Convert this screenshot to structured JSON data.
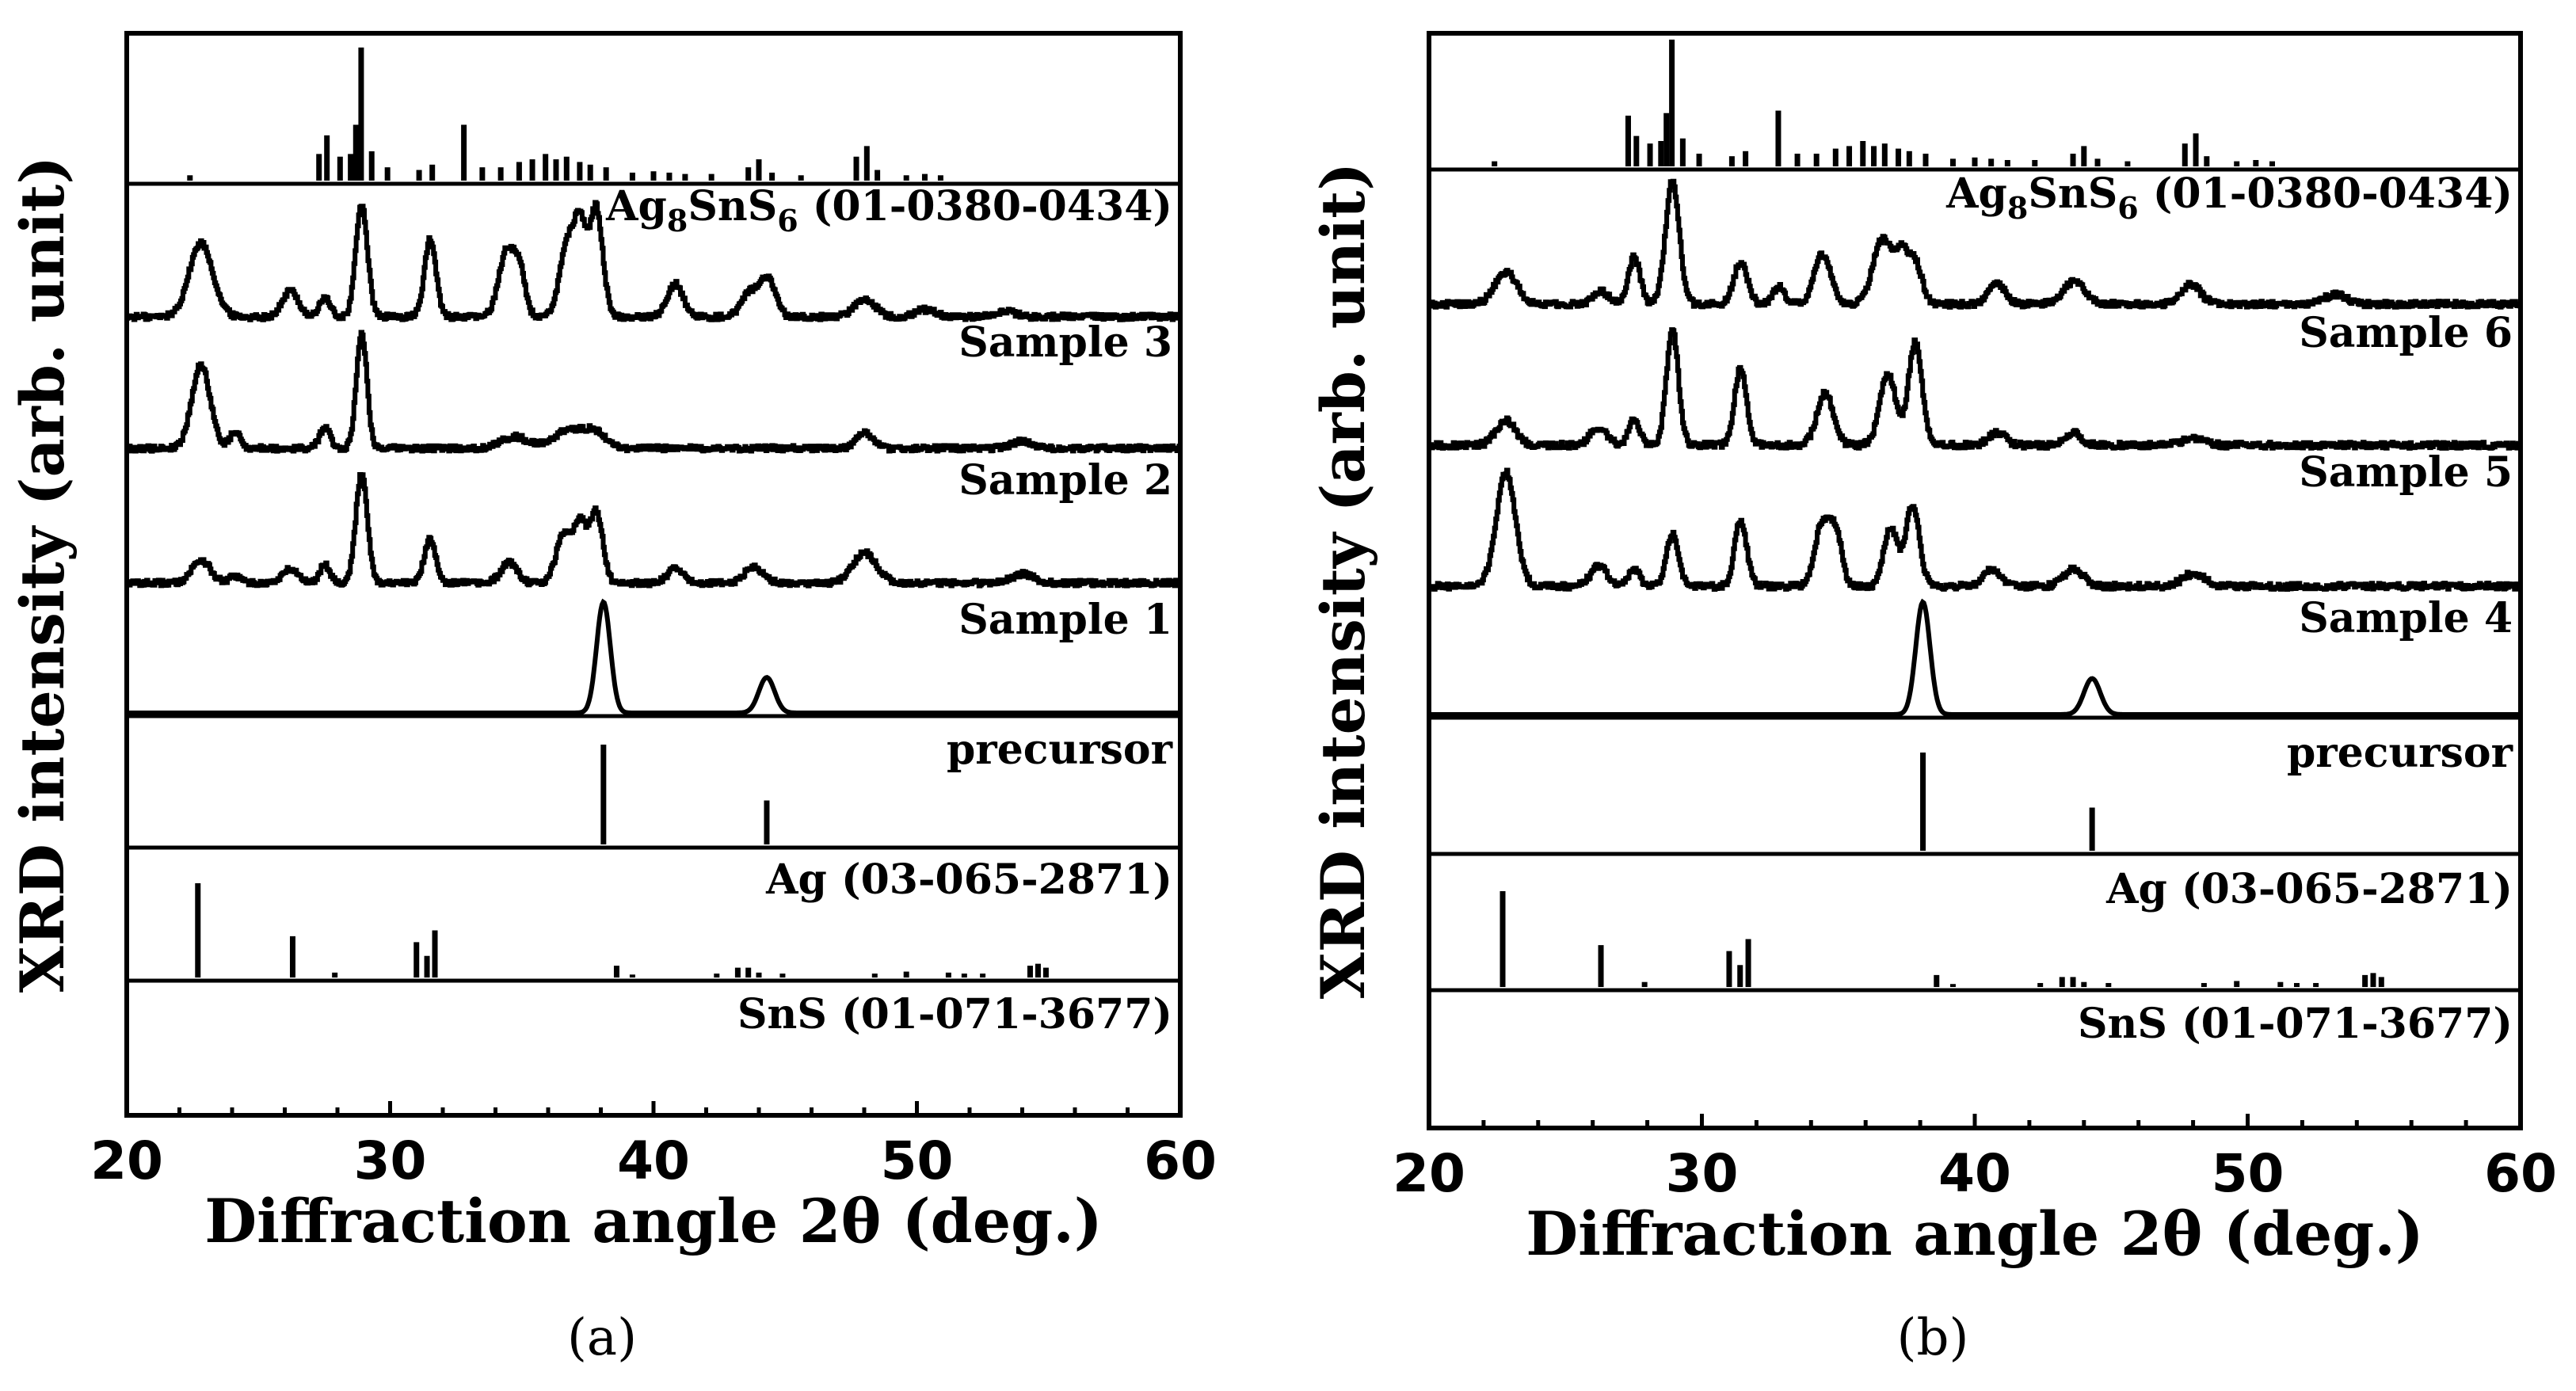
{
  "chart_data": [
    {
      "type": "line",
      "panel": "(a)",
      "xlabel": "Diffraction angle 2θ (deg.)",
      "ylabel": "XRD intensity (arb. unit)",
      "xlim": [
        20,
        60
      ],
      "xticks": [
        20,
        30,
        40,
        50,
        60
      ],
      "series": [
        {
          "name": "Ag8SnS6 (01-0380-0434)",
          "label_parts": [
            "Ag",
            "8",
            "SnS",
            "6",
            " (01-0380-0434)"
          ],
          "kind": "reference",
          "sticks": [
            [
              22.4,
              0.04
            ],
            [
              27.3,
              0.2
            ],
            [
              27.6,
              0.34
            ],
            [
              28.1,
              0.18
            ],
            [
              28.5,
              0.2
            ],
            [
              28.7,
              0.42
            ],
            [
              28.9,
              1.0
            ],
            [
              29.3,
              0.22
            ],
            [
              29.9,
              0.1
            ],
            [
              31.1,
              0.08
            ],
            [
              31.6,
              0.12
            ],
            [
              32.8,
              0.42
            ],
            [
              33.5,
              0.1
            ],
            [
              34.2,
              0.1
            ],
            [
              34.9,
              0.14
            ],
            [
              35.4,
              0.16
            ],
            [
              35.9,
              0.2
            ],
            [
              36.3,
              0.16
            ],
            [
              36.7,
              0.18
            ],
            [
              37.2,
              0.14
            ],
            [
              37.6,
              0.12
            ],
            [
              38.2,
              0.1
            ],
            [
              39.2,
              0.06
            ],
            [
              40.0,
              0.07
            ],
            [
              40.6,
              0.06
            ],
            [
              41.2,
              0.05
            ],
            [
              42.2,
              0.05
            ],
            [
              43.6,
              0.1
            ],
            [
              44.0,
              0.16
            ],
            [
              44.5,
              0.06
            ],
            [
              45.6,
              0.04
            ],
            [
              47.7,
              0.18
            ],
            [
              48.1,
              0.26
            ],
            [
              48.5,
              0.08
            ],
            [
              49.6,
              0.04
            ],
            [
              50.3,
              0.05
            ],
            [
              50.9,
              0.04
            ]
          ]
        },
        {
          "name": "Sample 3",
          "kind": "measured",
          "peaks": [
            [
              22.8,
              0.62,
              0.45
            ],
            [
              26.2,
              0.22,
              0.3
            ],
            [
              27.5,
              0.16,
              0.2
            ],
            [
              28.9,
              0.95,
              0.22
            ],
            [
              31.5,
              0.65,
              0.22
            ],
            [
              34.4,
              0.55,
              0.3
            ],
            [
              34.9,
              0.35,
              0.22
            ],
            [
              36.7,
              0.62,
              0.28
            ],
            [
              37.2,
              0.72,
              0.22
            ],
            [
              37.8,
              0.92,
              0.25
            ],
            [
              40.8,
              0.28,
              0.3
            ],
            [
              43.6,
              0.2,
              0.3
            ],
            [
              44.3,
              0.32,
              0.3
            ],
            [
              48.0,
              0.15,
              0.4
            ],
            [
              50.3,
              0.06,
              0.4
            ],
            [
              53.3,
              0.05,
              0.4
            ]
          ]
        },
        {
          "name": "Sample 2",
          "kind": "measured",
          "peaks": [
            [
              22.8,
              0.72,
              0.35
            ],
            [
              24.1,
              0.14,
              0.2
            ],
            [
              27.5,
              0.18,
              0.2
            ],
            [
              28.9,
              1.0,
              0.2
            ],
            [
              34.7,
              0.1,
              0.5
            ],
            [
              36.8,
              0.16,
              0.6
            ],
            [
              37.8,
              0.12,
              0.4
            ],
            [
              48.0,
              0.14,
              0.3
            ],
            [
              54.0,
              0.06,
              0.4
            ]
          ]
        },
        {
          "name": "Sample 1",
          "kind": "measured",
          "peaks": [
            [
              22.8,
              0.2,
              0.35
            ],
            [
              24.1,
              0.06,
              0.2
            ],
            [
              26.2,
              0.12,
              0.3
            ],
            [
              27.5,
              0.16,
              0.2
            ],
            [
              28.9,
              0.95,
              0.22
            ],
            [
              31.5,
              0.38,
              0.22
            ],
            [
              34.5,
              0.18,
              0.3
            ],
            [
              36.6,
              0.44,
              0.3
            ],
            [
              37.2,
              0.48,
              0.22
            ],
            [
              37.8,
              0.62,
              0.25
            ],
            [
              40.8,
              0.12,
              0.3
            ],
            [
              43.8,
              0.14,
              0.35
            ],
            [
              48.0,
              0.26,
              0.45
            ],
            [
              54.0,
              0.08,
              0.4
            ]
          ]
        },
        {
          "name": "precursor",
          "kind": "measured",
          "peaks": [
            [
              38.1,
              1.0,
              0.26
            ],
            [
              44.3,
              0.32,
              0.3
            ]
          ]
        },
        {
          "name": "Ag (03-065-2871)",
          "kind": "reference",
          "sticks": [
            [
              38.1,
              1.0
            ],
            [
              44.3,
              0.44
            ]
          ]
        },
        {
          "name": "SnS (01-071-3677)",
          "kind": "reference",
          "sticks": [
            [
              22.7,
              0.96
            ],
            [
              26.3,
              0.42
            ],
            [
              27.9,
              0.05
            ],
            [
              31.0,
              0.36
            ],
            [
              31.4,
              0.22
            ],
            [
              31.7,
              0.48
            ],
            [
              38.6,
              0.12
            ],
            [
              39.2,
              0.03
            ],
            [
              42.4,
              0.04
            ],
            [
              43.2,
              0.1
            ],
            [
              43.6,
              0.1
            ],
            [
              44.0,
              0.05
            ],
            [
              44.9,
              0.04
            ],
            [
              48.4,
              0.04
            ],
            [
              49.6,
              0.06
            ],
            [
              51.2,
              0.05
            ],
            [
              51.8,
              0.04
            ],
            [
              52.5,
              0.04
            ],
            [
              54.3,
              0.12
            ],
            [
              54.6,
              0.14
            ],
            [
              54.9,
              0.1
            ]
          ]
        }
      ]
    },
    {
      "type": "line",
      "panel": "(b)",
      "xlabel": "Diffraction angle 2θ (deg.)",
      "ylabel": "XRD intensity (arb. unit)",
      "xlim": [
        20,
        60
      ],
      "xticks": [
        20,
        30,
        40,
        50,
        60
      ],
      "series": [
        {
          "name": "Ag8SnS6 (01-0380-0434)",
          "label_parts": [
            "Ag",
            "8",
            "SnS",
            "6",
            " (01-0380-0434)"
          ],
          "kind": "reference",
          "sticks": [
            [
              22.4,
              0.04
            ],
            [
              27.3,
              0.4
            ],
            [
              27.6,
              0.24
            ],
            [
              28.1,
              0.18
            ],
            [
              28.5,
              0.2
            ],
            [
              28.7,
              0.42
            ],
            [
              28.9,
              1.0
            ],
            [
              29.3,
              0.22
            ],
            [
              29.9,
              0.1
            ],
            [
              31.1,
              0.08
            ],
            [
              31.6,
              0.12
            ],
            [
              32.8,
              0.44
            ],
            [
              33.5,
              0.1
            ],
            [
              34.2,
              0.1
            ],
            [
              34.9,
              0.14
            ],
            [
              35.4,
              0.16
            ],
            [
              35.9,
              0.2
            ],
            [
              36.3,
              0.16
            ],
            [
              36.7,
              0.18
            ],
            [
              37.2,
              0.14
            ],
            [
              37.6,
              0.12
            ],
            [
              38.2,
              0.1
            ],
            [
              39.2,
              0.06
            ],
            [
              40.0,
              0.07
            ],
            [
              40.6,
              0.06
            ],
            [
              41.2,
              0.05
            ],
            [
              42.2,
              0.05
            ],
            [
              43.6,
              0.1
            ],
            [
              44.0,
              0.16
            ],
            [
              44.5,
              0.06
            ],
            [
              45.6,
              0.04
            ],
            [
              47.7,
              0.18
            ],
            [
              48.1,
              0.26
            ],
            [
              48.5,
              0.08
            ],
            [
              49.6,
              0.04
            ],
            [
              50.3,
              0.05
            ],
            [
              50.9,
              0.04
            ]
          ]
        },
        {
          "name": "Sample 6",
          "kind": "measured",
          "peaks": [
            [
              22.8,
              0.26,
              0.4
            ],
            [
              26.3,
              0.1,
              0.3
            ],
            [
              27.5,
              0.38,
              0.22
            ],
            [
              28.9,
              1.0,
              0.25
            ],
            [
              31.4,
              0.34,
              0.25
            ],
            [
              32.8,
              0.14,
              0.22
            ],
            [
              34.4,
              0.4,
              0.3
            ],
            [
              36.6,
              0.52,
              0.35
            ],
            [
              37.3,
              0.36,
              0.25
            ],
            [
              37.8,
              0.32,
              0.25
            ],
            [
              40.8,
              0.16,
              0.3
            ],
            [
              43.6,
              0.18,
              0.4
            ],
            [
              47.9,
              0.16,
              0.35
            ],
            [
              53.2,
              0.08,
              0.4
            ]
          ]
        },
        {
          "name": "Sample 5",
          "kind": "measured",
          "peaks": [
            [
              22.8,
              0.2,
              0.35
            ],
            [
              26.2,
              0.14,
              0.3
            ],
            [
              27.5,
              0.2,
              0.2
            ],
            [
              28.9,
              0.92,
              0.22
            ],
            [
              31.4,
              0.62,
              0.22
            ],
            [
              34.5,
              0.42,
              0.3
            ],
            [
              36.8,
              0.56,
              0.3
            ],
            [
              37.8,
              0.82,
              0.25
            ],
            [
              40.8,
              0.1,
              0.3
            ],
            [
              43.6,
              0.1,
              0.3
            ],
            [
              48.0,
              0.06,
              0.4
            ]
          ]
        },
        {
          "name": "Sample 4",
          "kind": "measured",
          "peaks": [
            [
              22.8,
              0.9,
              0.35
            ],
            [
              26.2,
              0.16,
              0.3
            ],
            [
              27.5,
              0.14,
              0.2
            ],
            [
              28.9,
              0.42,
              0.22
            ],
            [
              31.4,
              0.52,
              0.22
            ],
            [
              34.4,
              0.5,
              0.28
            ],
            [
              34.9,
              0.38,
              0.22
            ],
            [
              36.9,
              0.46,
              0.25
            ],
            [
              37.7,
              0.64,
              0.25
            ],
            [
              40.6,
              0.14,
              0.3
            ],
            [
              43.6,
              0.14,
              0.35
            ],
            [
              48.0,
              0.1,
              0.4
            ]
          ]
        },
        {
          "name": "precursor",
          "kind": "measured",
          "peaks": [
            [
              38.1,
              1.0,
              0.26
            ],
            [
              44.3,
              0.32,
              0.3
            ]
          ]
        },
        {
          "name": "Ag (03-065-2871)",
          "kind": "reference",
          "sticks": [
            [
              38.1,
              1.0
            ],
            [
              44.3,
              0.44
            ]
          ]
        },
        {
          "name": "SnS (01-071-3677)",
          "kind": "reference",
          "sticks": [
            [
              22.7,
              0.96
            ],
            [
              26.3,
              0.42
            ],
            [
              27.9,
              0.05
            ],
            [
              31.0,
              0.36
            ],
            [
              31.4,
              0.22
            ],
            [
              31.7,
              0.48
            ],
            [
              38.6,
              0.12
            ],
            [
              39.2,
              0.03
            ],
            [
              42.4,
              0.04
            ],
            [
              43.2,
              0.1
            ],
            [
              43.6,
              0.1
            ],
            [
              44.0,
              0.05
            ],
            [
              44.9,
              0.04
            ],
            [
              48.4,
              0.04
            ],
            [
              49.6,
              0.06
            ],
            [
              51.2,
              0.05
            ],
            [
              51.8,
              0.04
            ],
            [
              52.5,
              0.04
            ],
            [
              54.3,
              0.12
            ],
            [
              54.6,
              0.14
            ],
            [
              54.9,
              0.1
            ]
          ]
        }
      ]
    }
  ]
}
